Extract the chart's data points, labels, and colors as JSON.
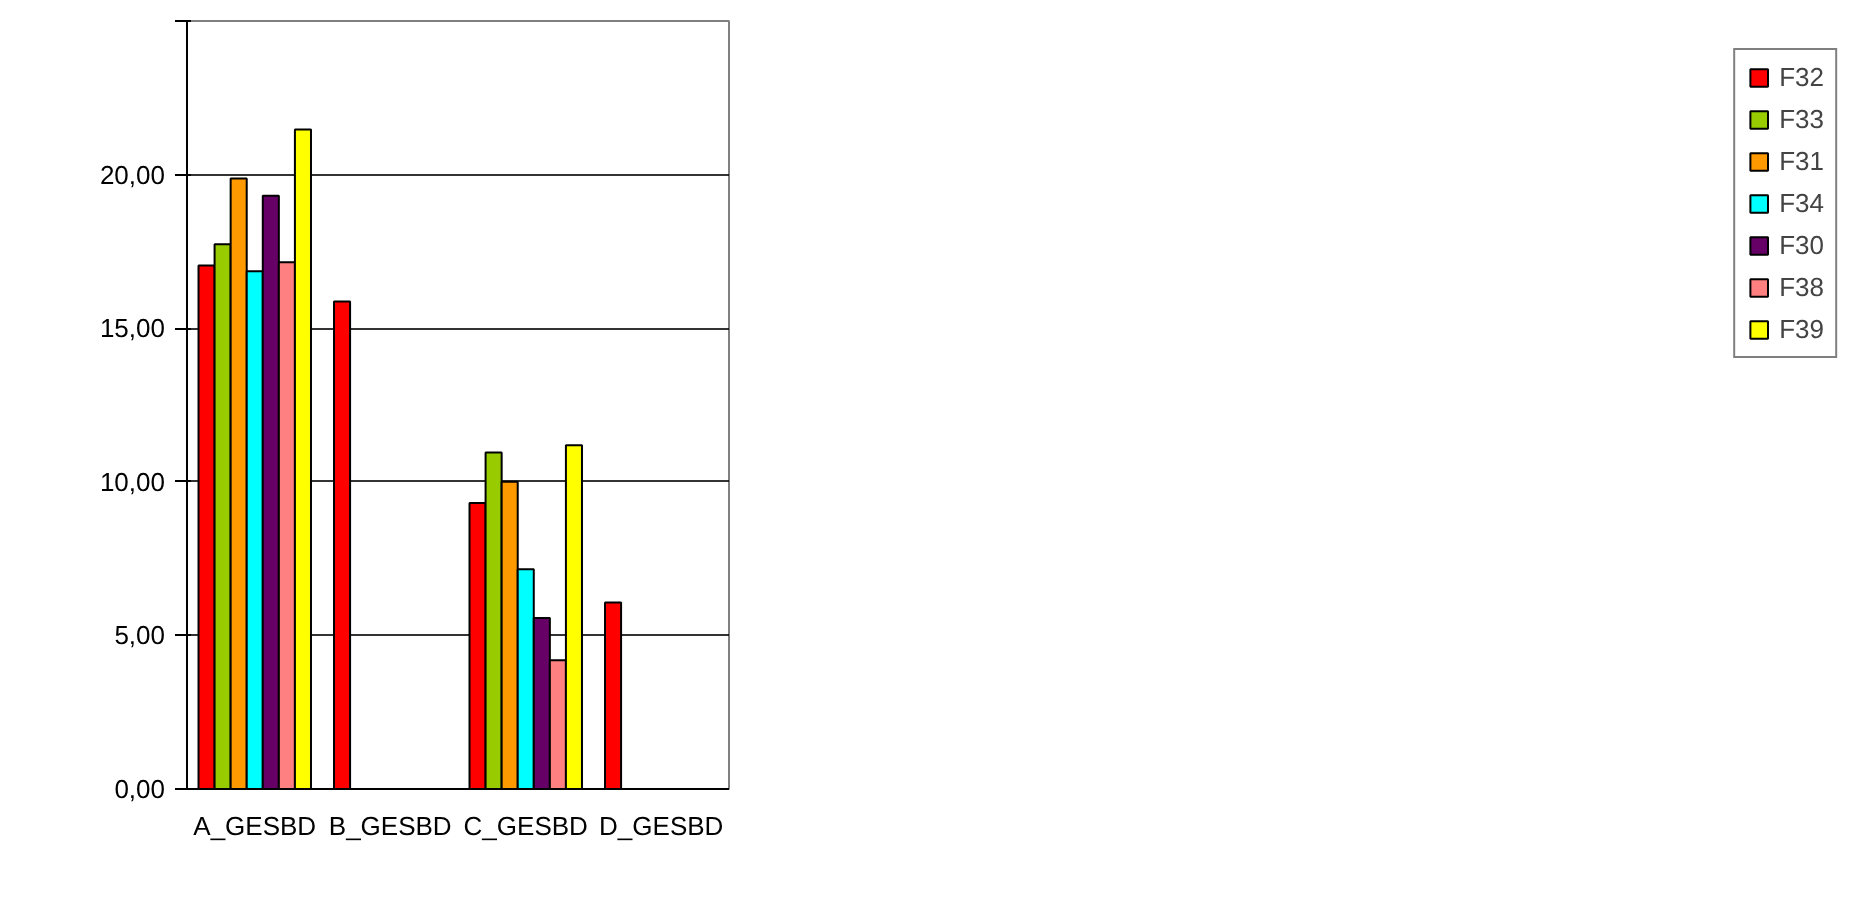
{
  "chart_data": {
    "type": "bar",
    "categories": [
      "A_GESBD",
      "B_GESBD",
      "C_GESBD",
      "D_GESBD"
    ],
    "series": [
      {
        "name": "F32",
        "color": "#ff0000",
        "values": [
          17.04,
          15.87,
          9.31,
          6.07
        ]
      },
      {
        "name": "F33",
        "color": "#99cc00",
        "values": [
          17.73,
          null,
          10.95,
          null
        ]
      },
      {
        "name": "F31",
        "color": "#ff9900",
        "values": [
          19.87,
          null,
          10.0,
          null
        ]
      },
      {
        "name": "F34",
        "color": "#00ffff",
        "values": [
          16.85,
          null,
          7.15,
          null
        ]
      },
      {
        "name": "F30",
        "color": "#660066",
        "values": [
          19.31,
          null,
          5.57,
          null
        ]
      },
      {
        "name": "F38",
        "color": "#ff8080",
        "values": [
          17.15,
          null,
          4.19,
          null
        ]
      },
      {
        "name": "F39",
        "color": "#ffff00",
        "values": [
          21.47,
          null,
          11.19,
          null
        ]
      }
    ],
    "ylim": [
      0,
      25
    ],
    "yticks": [
      {
        "value": 0,
        "label": "0,00"
      },
      {
        "value": 5,
        "label": "5,00"
      },
      {
        "value": 10,
        "label": "10,00"
      },
      {
        "value": 15,
        "label": "15,00"
      },
      {
        "value": 20,
        "label": "20,00"
      },
      {
        "value": 25,
        "label": null
      }
    ],
    "grid": "y",
    "legend": "right"
  }
}
